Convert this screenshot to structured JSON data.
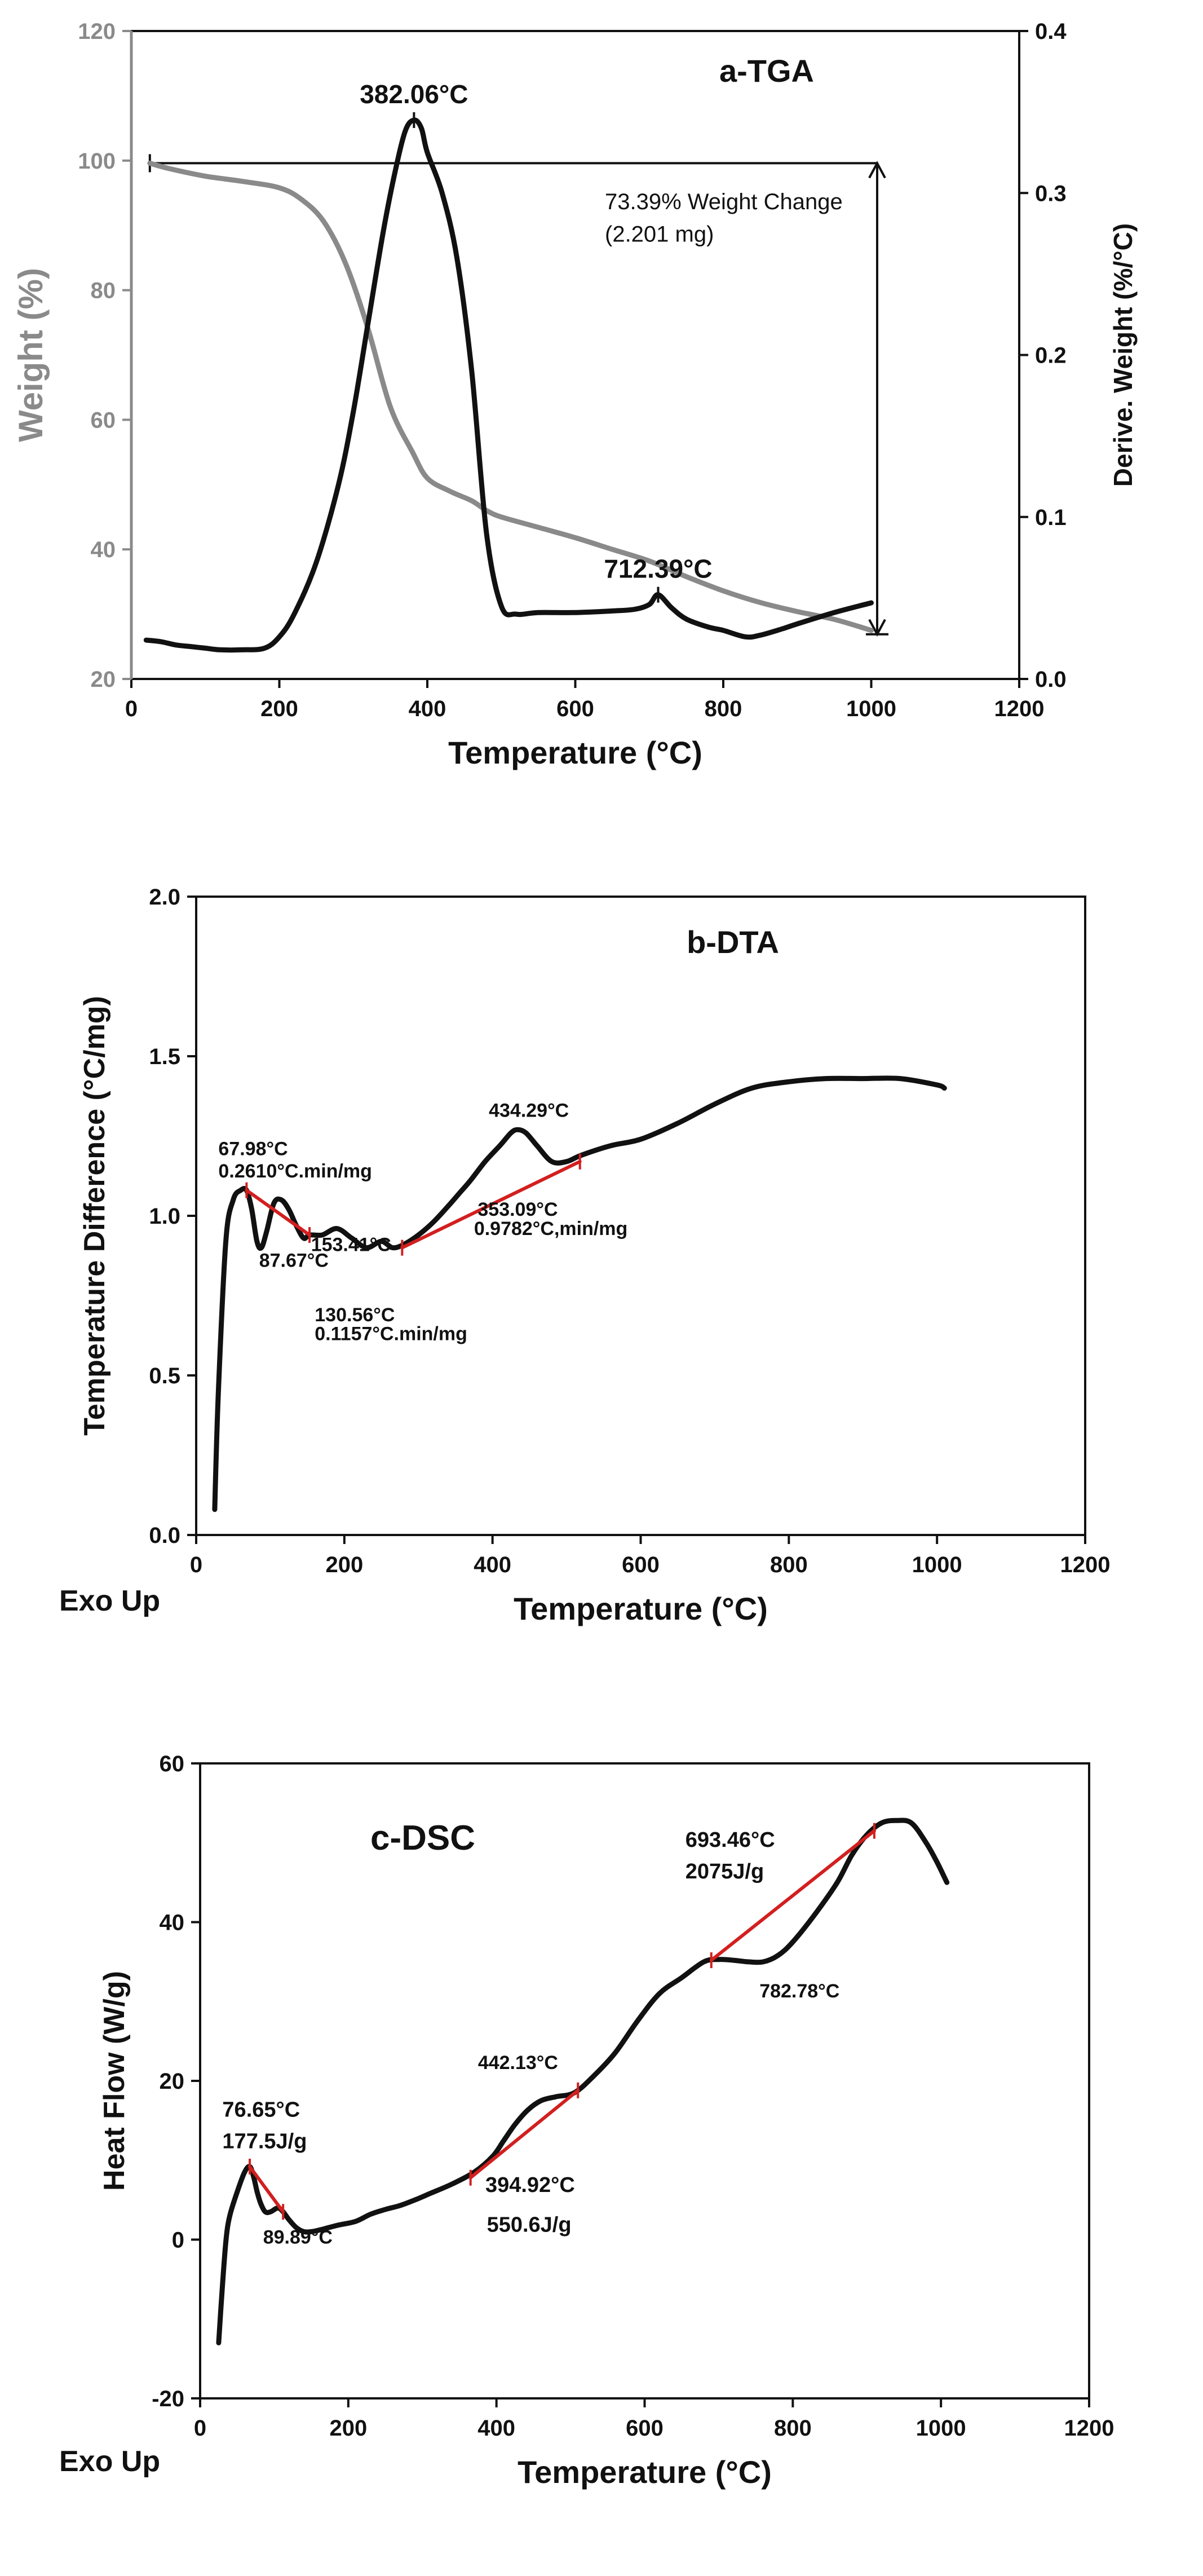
{
  "chart_data": [
    {
      "type": "line",
      "title": "a-TGA",
      "xlabel": "Temperature (°C)",
      "ylabel": "Weight (%)",
      "y2label": "Derive. Weight (%/°C)",
      "xlim": [
        0,
        1200
      ],
      "ylim": [
        20,
        120
      ],
      "y2lim": [
        0,
        0.4
      ],
      "xticks": [
        "0",
        "200",
        "400",
        "600",
        "800",
        "1000",
        "1200"
      ],
      "yticks": [
        "20",
        "40",
        "60",
        "80",
        "100",
        "120"
      ],
      "y2ticks": [
        "0.0",
        "0.1",
        "0.2",
        "0.3",
        "0.4"
      ],
      "colors": {
        "weight": "#8a8a8a",
        "derivative": "#111111",
        "y_axis": "#8a8a8a"
      },
      "series": [
        {
          "name": "Weight",
          "axis": "left",
          "x": [
            25,
            50,
            100,
            150,
            200,
            230,
            260,
            290,
            320,
            350,
            380,
            400,
            430,
            460,
            480,
            500,
            550,
            600,
            650,
            700,
            750,
            800,
            850,
            900,
            950,
            1000
          ],
          "y": [
            99.6,
            98.8,
            97.6,
            96.8,
            95.8,
            94.0,
            90.6,
            84.0,
            74.0,
            62.0,
            55.0,
            51.0,
            49.0,
            47.5,
            46.0,
            45.0,
            43.4,
            41.8,
            40.0,
            38.2,
            35.8,
            33.6,
            31.8,
            30.4,
            29.2,
            27.5
          ]
        },
        {
          "name": "Derivative Weight",
          "axis": "right",
          "x": [
            20,
            40,
            60,
            80,
            100,
            120,
            150,
            180,
            200,
            220,
            250,
            280,
            300,
            320,
            340,
            355,
            370,
            382,
            392,
            400,
            420,
            440,
            460,
            480,
            500,
            520,
            550,
            600,
            650,
            680,
            700,
            712,
            730,
            750,
            780,
            800,
            830,
            850,
            880,
            900,
            950,
            1000
          ],
          "y": [
            0.024,
            0.023,
            0.021,
            0.02,
            0.019,
            0.018,
            0.018,
            0.019,
            0.026,
            0.04,
            0.072,
            0.12,
            0.165,
            0.22,
            0.275,
            0.31,
            0.338,
            0.345,
            0.34,
            0.325,
            0.3,
            0.26,
            0.19,
            0.09,
            0.045,
            0.04,
            0.041,
            0.041,
            0.042,
            0.043,
            0.046,
            0.052,
            0.044,
            0.037,
            0.032,
            0.03,
            0.026,
            0.027,
            0.031,
            0.034,
            0.041,
            0.047
          ]
        }
      ],
      "annotations": [
        {
          "text": "382.06°C",
          "x": 382,
          "y": 0.345,
          "axis": "right"
        },
        {
          "text": "712.39°C",
          "x": 712,
          "y": 0.052,
          "axis": "right"
        },
        {
          "text": "73.39% Weight Change",
          "x": 640,
          "y": 0.29,
          "axis": "right"
        },
        {
          "text": "(2.201 mg)",
          "x": 640,
          "y": 0.27,
          "axis": "right"
        }
      ],
      "weight_change_marker": {
        "x_start": 25,
        "x_end": 1008,
        "y_top": 99.6,
        "y_bottom": 26.9
      }
    },
    {
      "type": "line",
      "title": "b-DTA",
      "xlabel": "Temperature (°C)",
      "ylabel": "Temperature Difference (°C/mg)",
      "corner_label": "Exo Up",
      "xlim": [
        0,
        1200
      ],
      "ylim": [
        0.0,
        2.0
      ],
      "xticks": [
        "0",
        "200",
        "400",
        "600",
        "800",
        "1000",
        "1200"
      ],
      "yticks": [
        "0.0",
        "0.5",
        "1.0",
        "1.5",
        "2.0"
      ],
      "colors": {
        "curve": "#111111",
        "baseline": "#d21f1f"
      },
      "series": [
        {
          "name": "DTA",
          "x": [
            25,
            30,
            40,
            50,
            60,
            68,
            75,
            82,
            88,
            95,
            105,
            115,
            125,
            135,
            145,
            153,
            170,
            190,
            210,
            230,
            250,
            265,
            280,
            300,
            320,
            340,
            355,
            370,
            390,
            410,
            425,
            434,
            445,
            460,
            480,
            500,
            520,
            560,
            600,
            650,
            700,
            750,
            800,
            850,
            900,
            950,
            1000,
            1010
          ],
          "y": [
            0.08,
            0.45,
            0.92,
            1.05,
            1.08,
            1.08,
            1.02,
            0.92,
            0.9,
            0.95,
            1.04,
            1.05,
            1.02,
            0.97,
            0.93,
            0.94,
            0.94,
            0.96,
            0.93,
            0.9,
            0.92,
            0.9,
            0.91,
            0.94,
            0.98,
            1.03,
            1.07,
            1.11,
            1.17,
            1.22,
            1.26,
            1.27,
            1.26,
            1.22,
            1.17,
            1.17,
            1.19,
            1.22,
            1.24,
            1.29,
            1.35,
            1.4,
            1.42,
            1.43,
            1.43,
            1.43,
            1.41,
            1.4
          ]
        },
        {
          "name": "baseline-1",
          "x": [
            68,
            153
          ],
          "y": [
            1.08,
            0.94
          ]
        },
        {
          "name": "baseline-2",
          "x": [
            278,
            518
          ],
          "y": [
            0.9,
            1.17
          ]
        }
      ],
      "annotations": [
        {
          "text": "67.98°C",
          "x": 30,
          "y": 1.19
        },
        {
          "text": "0.2610°C.min/mg",
          "x": 30,
          "y": 1.12
        },
        {
          "text": "87.67°C",
          "x": 85,
          "y": 0.84
        },
        {
          "text": "153.41°C",
          "x": 155,
          "y": 0.89
        },
        {
          "text": "130.56°C",
          "x": 160,
          "y": 0.67
        },
        {
          "text": "0.1157°C.min/mg",
          "x": 160,
          "y": 0.61
        },
        {
          "text": "434.29°C",
          "x": 395,
          "y": 1.31
        },
        {
          "text": "353.09°C",
          "x": 380,
          "y": 1.0
        },
        {
          "text": "0.9782°C,min/mg",
          "x": 375,
          "y": 0.94
        }
      ]
    },
    {
      "type": "line",
      "title": "c-DSC",
      "xlabel": "Temperature (°C)",
      "ylabel": "Heat Flow (W/g)",
      "corner_label": "Exo Up",
      "xlim": [
        0,
        1200
      ],
      "ylim": [
        -20,
        60
      ],
      "xticks": [
        "0",
        "200",
        "400",
        "600",
        "800",
        "1000",
        "1200"
      ],
      "yticks": [
        "-20",
        "0",
        "20",
        "40",
        "60"
      ],
      "colors": {
        "curve": "#111111",
        "baseline": "#d21f1f"
      },
      "series": [
        {
          "name": "DSC",
          "x": [
            25,
            30,
            35,
            40,
            50,
            60,
            67,
            72,
            77,
            82,
            88,
            95,
            105,
            112,
            120,
            130,
            140,
            150,
            165,
            185,
            210,
            230,
            250,
            270,
            290,
            310,
            340,
            370,
            395,
            410,
            425,
            442,
            460,
            480,
            505,
            530,
            560,
            590,
            620,
            650,
            680,
            700,
            720,
            740,
            760,
            780,
            800,
            830,
            860,
            880,
            900,
            920,
            940,
            960,
            980,
            995,
            1008
          ],
          "y": [
            -13,
            -6,
            0,
            3,
            6,
            8.5,
            9.2,
            8,
            6,
            4.5,
            3.5,
            3.5,
            4,
            3.5,
            2.5,
            1.5,
            1.0,
            1.0,
            1.3,
            1.8,
            2.3,
            3.2,
            3.8,
            4.3,
            5.0,
            5.8,
            7.0,
            8.5,
            10.5,
            12.5,
            14.5,
            16.3,
            17.5,
            18.0,
            18.5,
            20.5,
            23.5,
            27.5,
            31.0,
            33.0,
            35.0,
            35.3,
            35.2,
            35.0,
            35.0,
            35.8,
            37.5,
            41.0,
            45.0,
            48.5,
            51.0,
            52.5,
            52.8,
            52.5,
            50.0,
            47.5,
            45.0
          ]
        },
        {
          "name": "baseline-1",
          "x": [
            67,
            112
          ],
          "y": [
            9.2,
            3.5
          ]
        },
        {
          "name": "baseline-2",
          "x": [
            365,
            510
          ],
          "y": [
            7.8,
            18.8
          ]
        },
        {
          "name": "baseline-3",
          "x": [
            690,
            910
          ],
          "y": [
            35.2,
            51.5
          ]
        }
      ],
      "annotations": [
        {
          "text": "76.65°C",
          "x": 30,
          "y": 15.5
        },
        {
          "text": "177.5J/g",
          "x": 30,
          "y": 11.5
        },
        {
          "text": "89.89°C",
          "x": 85,
          "y": -0.5
        },
        {
          "text": "442.13°C",
          "x": 375,
          "y": 21.5
        },
        {
          "text": "394.92°C",
          "x": 385,
          "y": 6.0
        },
        {
          "text": "550.6J/g",
          "x": 387,
          "y": 1.0
        },
        {
          "text": "693.46°C",
          "x": 655,
          "y": 49.5
        },
        {
          "text": "2075J/g",
          "x": 655,
          "y": 45.5
        },
        {
          "text": "782.78°C",
          "x": 755,
          "y": 30.5
        }
      ]
    }
  ]
}
